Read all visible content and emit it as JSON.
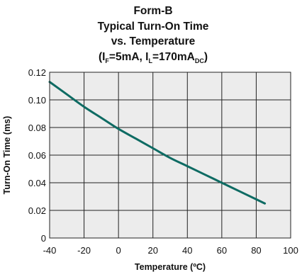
{
  "chart_data": {
    "type": "line",
    "title_lines": [
      "Form-B",
      "Typical Turn-On Time",
      "vs. Temperature"
    ],
    "title_condition": {
      "open": "(I",
      "sub1": "F",
      "mid1": "=5mA, I",
      "sub2": "L",
      "mid2": "=170mA",
      "sub3": "DC",
      "close": ")"
    },
    "xlabel": "Temperature (ºC)",
    "ylabel": "Turn-On Time (ms)",
    "xlim": [
      -40,
      100
    ],
    "ylim": [
      0,
      0.12
    ],
    "x_ticks": [
      "-40",
      "-20",
      "0",
      "20",
      "40",
      "60",
      "80",
      "100"
    ],
    "y_ticks": [
      "0",
      "0.02",
      "0.04",
      "0.06",
      "0.08",
      "0.10",
      "0.12"
    ],
    "grid": true,
    "plot_background": "#ececec",
    "series": [
      {
        "color": "#0e6b63",
        "x": [
          -40,
          -30,
          -20,
          -10,
          0,
          10,
          20,
          30,
          40,
          50,
          60,
          70,
          80,
          85
        ],
        "y": [
          0.113,
          0.104,
          0.095,
          0.087,
          0.079,
          0.072,
          0.065,
          0.058,
          0.052,
          0.046,
          0.04,
          0.034,
          0.028,
          0.025
        ]
      }
    ]
  }
}
